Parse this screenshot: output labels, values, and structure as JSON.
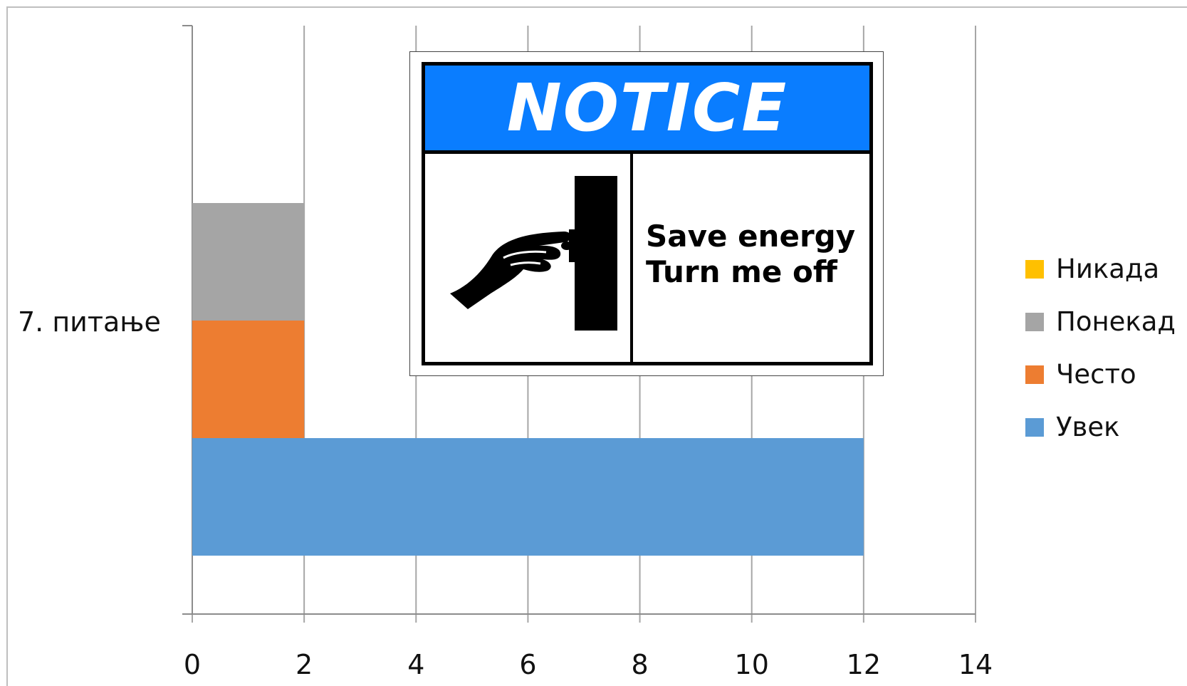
{
  "chart_data": {
    "type": "bar",
    "orientation": "horizontal",
    "stacking": "grouped",
    "categories": [
      "7. питање"
    ],
    "series": [
      {
        "name": "Увек",
        "values": [
          12
        ],
        "color": "#5b9bd5"
      },
      {
        "name": "Често",
        "values": [
          2
        ],
        "color": "#ed7d31"
      },
      {
        "name": "Понекад",
        "values": [
          2
        ],
        "color": "#a5a5a5"
      },
      {
        "name": "Никада",
        "values": [
          0
        ],
        "color": "#ffc000"
      }
    ],
    "x_ticks": [
      "0",
      "2",
      "4",
      "6",
      "8",
      "10",
      "12",
      "14"
    ],
    "xlim": [
      0,
      14
    ],
    "grid": "vertical",
    "legend": {
      "placement": "right",
      "items": [
        {
          "label": "Никада",
          "color": "#ffc000"
        },
        {
          "label": "Понекад",
          "color": "#a5a5a5"
        },
        {
          "label": "Често",
          "color": "#ed7d31"
        },
        {
          "label": "Увек",
          "color": "#5b9bd5"
        }
      ]
    }
  },
  "notice_sign": {
    "title": "NOTICE",
    "line1": "Save energy",
    "line2": "Turn me off",
    "header_color": "#0a7dff"
  }
}
